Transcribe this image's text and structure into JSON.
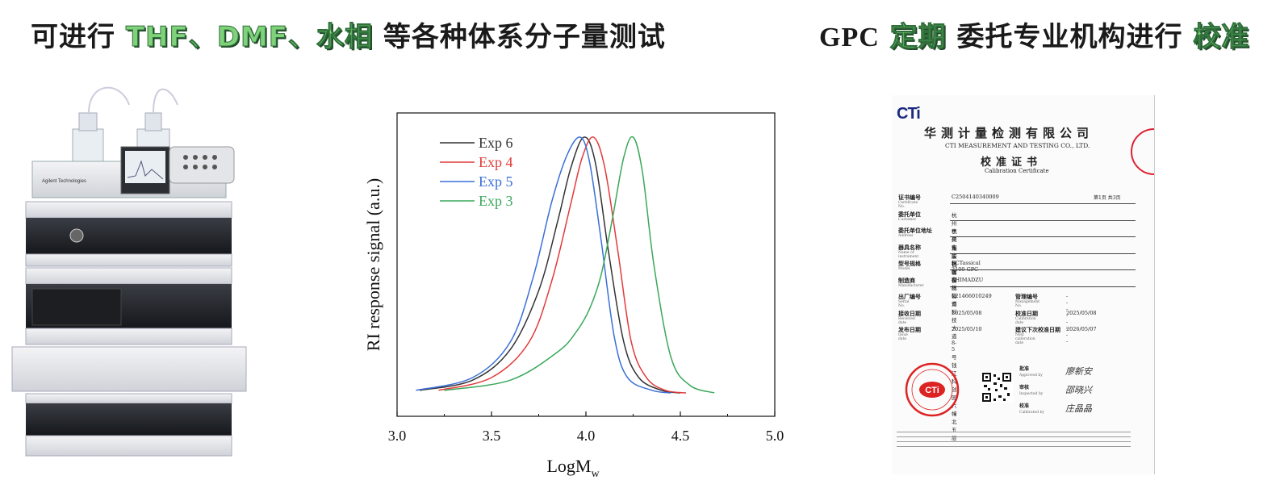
{
  "headline_left": {
    "prefix": "可进行",
    "highlight1": "THF、DMF、水相",
    "suffix": "等各种体系分子量测试"
  },
  "headline_right": {
    "prefix": "GPC",
    "highlight1": "定期",
    "middle": "委托专业机构进行",
    "highlight2": "校准"
  },
  "instrument": {
    "brand": "Agilent Technologies"
  },
  "chart_data": {
    "type": "line",
    "xlabel": "LogM",
    "xlabel_sub": "w",
    "ylabel": "RI response signal (a.u.)",
    "xlim": [
      3.0,
      5.0
    ],
    "x_ticks": [
      "3.0",
      "3.5",
      "4.0",
      "4.5",
      "5.0"
    ],
    "legend_position": "top-left",
    "series": [
      {
        "name": "Exp 6",
        "color": "#333333",
        "x": [
          3.12,
          3.4,
          3.6,
          3.75,
          3.85,
          3.92,
          3.99,
          4.05,
          4.12,
          4.2,
          4.28,
          4.4,
          4.5
        ],
        "y": [
          0.01,
          0.05,
          0.17,
          0.4,
          0.67,
          0.88,
          1.0,
          0.9,
          0.55,
          0.2,
          0.06,
          0.01,
          0.0
        ]
      },
      {
        "name": "Exp 4",
        "color": "#e23b3b",
        "x": [
          3.22,
          3.5,
          3.7,
          3.82,
          3.92,
          3.98,
          4.04,
          4.1,
          4.17,
          4.24,
          4.32,
          4.42,
          4.53
        ],
        "y": [
          0.01,
          0.06,
          0.2,
          0.44,
          0.74,
          0.92,
          1.0,
          0.88,
          0.55,
          0.2,
          0.06,
          0.01,
          0.0
        ]
      },
      {
        "name": "Exp 5",
        "color": "#3a6fd8",
        "x": [
          3.1,
          3.4,
          3.6,
          3.72,
          3.82,
          3.9,
          3.97,
          4.02,
          4.08,
          4.15,
          4.22,
          4.35,
          4.45
        ],
        "y": [
          0.01,
          0.06,
          0.2,
          0.45,
          0.75,
          0.93,
          1.0,
          0.9,
          0.6,
          0.22,
          0.06,
          0.01,
          0.0
        ]
      },
      {
        "name": "Exp 3",
        "color": "#3aa85a",
        "x": [
          3.25,
          3.6,
          3.85,
          3.95,
          4.02,
          4.08,
          4.14,
          4.2,
          4.25,
          4.3,
          4.36,
          4.45,
          4.55,
          4.68
        ],
        "y": [
          0.01,
          0.05,
          0.16,
          0.24,
          0.33,
          0.46,
          0.68,
          0.92,
          1.0,
          0.86,
          0.5,
          0.14,
          0.03,
          0.0
        ]
      }
    ]
  },
  "certificate": {
    "logo": "CTi",
    "company_cn": "华测计量检测有限公司",
    "company_en": "CTI MEASUREMENT AND TESTING CO., LTD.",
    "title_cn": "校准证书",
    "title_en": "Calibration   Certificate",
    "page_no": "第1页 共3页",
    "rows": [
      {
        "label": "证书编号",
        "sub": "Certificate No.",
        "value": "C2504140340009"
      },
      {
        "label": "委托单位",
        "sub": "Customer",
        "value": "杭州宇昊化工科技有限公司"
      },
      {
        "label": "委托单位地址",
        "sub": "Address",
        "value": "杭州市余杭区余杭街道科技大道8-5号钱江科创园六幢北五层"
      },
      {
        "label": "器具名称",
        "sub": "Name of instrument",
        "value": "凝胶色谱仪"
      },
      {
        "label": "型号规格",
        "sub": "Model",
        "value": "ECTassical 3100 GPC"
      },
      {
        "label": "制造商",
        "sub": "Manufacturer",
        "value": "SHIMADZU"
      }
    ],
    "pair_rows": [
      {
        "label": "出厂编号",
        "sub": "Serial No.",
        "value": "L21466010249",
        "label2": "管理编号",
        "sub2": "Management No.",
        "value2": "--------"
      },
      {
        "label": "接收日期",
        "sub": "Received date",
        "value": "2025/05/08",
        "label2": "校准日期",
        "sub2": "Calibration date",
        "value2": "2025/05/08"
      },
      {
        "label": "发布日期",
        "sub": "Issue date",
        "value": "2025/05/10",
        "label2": "建议下次校准日期",
        "sub2": "Next calibration date",
        "value2": "2026/05/07"
      }
    ],
    "approved_label": "批准",
    "approved_sub": "Approved by",
    "approved_name": "廖新安",
    "inspected_label": "审核",
    "inspected_sub": "Inspected by",
    "inspected_name": "邵晓兴",
    "calibrated_label": "校准",
    "calibrated_sub": "Calibrated by",
    "calibrated_name": "庄晶晶",
    "stamp_text": "CTi"
  }
}
